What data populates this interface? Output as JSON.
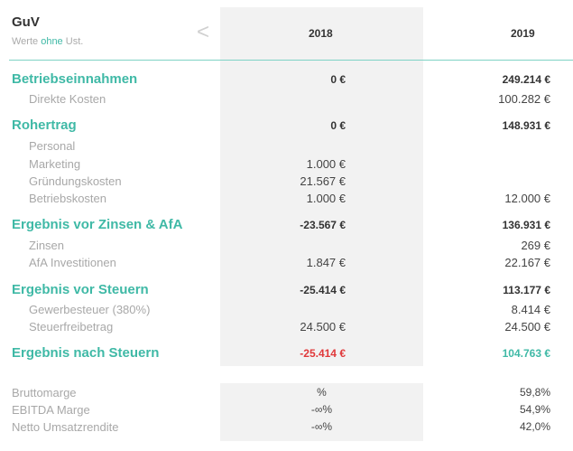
{
  "header": {
    "title": "GuV",
    "subtitle_prefix": "Werte ",
    "subtitle_accent": "ohne",
    "subtitle_suffix": " Ust.",
    "prev_icon": "chevron-left-icon",
    "years": [
      "2018",
      "2019"
    ]
  },
  "rows": [
    {
      "label": "Betriebseinnahmen",
      "v2018": "0 €",
      "v2019": "249.214 €"
    },
    {
      "label": "Direkte Kosten",
      "v2018": "",
      "v2019": "100.282 €"
    },
    {
      "label": "Rohertrag",
      "v2018": "0 €",
      "v2019": "148.931 €"
    },
    {
      "label": "Personal",
      "v2018": "",
      "v2019": ""
    },
    {
      "label": "Marketing",
      "v2018": "1.000 €",
      "v2019": ""
    },
    {
      "label": "Gründungskosten",
      "v2018": "21.567 €",
      "v2019": ""
    },
    {
      "label": "Betriebskosten",
      "v2018": "1.000 €",
      "v2019": "12.000 €"
    },
    {
      "label": "Ergebnis vor Zinsen & AfA",
      "v2018": "-23.567 €",
      "v2019": "136.931 €"
    },
    {
      "label": "Zinsen",
      "v2018": "",
      "v2019": "269 €"
    },
    {
      "label": "AfA Investitionen",
      "v2018": "1.847 €",
      "v2019": "22.167 €"
    },
    {
      "label": "Ergebnis vor Steuern",
      "v2018": "-25.414 €",
      "v2019": "113.177 €"
    },
    {
      "label": "Gewerbesteuer (380%)",
      "v2018": "",
      "v2019": "8.414 €"
    },
    {
      "label": "Steuerfreibetrag",
      "v2018": "24.500 €",
      "v2019": "24.500 €"
    },
    {
      "label": "Ergebnis nach Steuern",
      "v2018": "-25.414 €",
      "v2019": "104.763 €"
    }
  ],
  "kpis": [
    {
      "label": "Bruttomarge",
      "v2018": "%",
      "v2019": "59,8%"
    },
    {
      "label": "EBITDA Marge",
      "v2018": "-∞%",
      "v2019": "54,9%"
    },
    {
      "label": "Netto Umsatzrendite",
      "v2018": "-∞%",
      "v2019": "42,0%"
    }
  ],
  "colors": {
    "accent": "#3fb9a6",
    "negative": "#e0383a",
    "column_shade": "#f2f2f2"
  }
}
